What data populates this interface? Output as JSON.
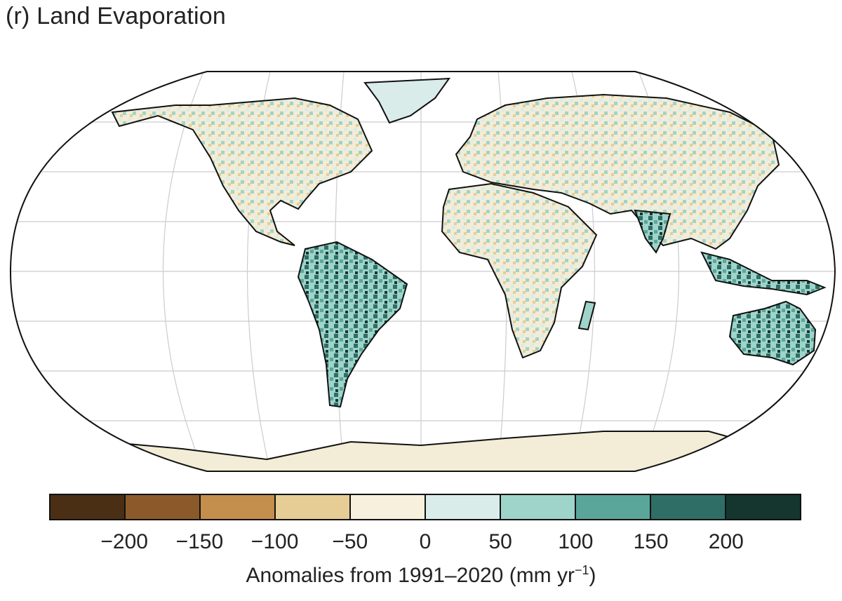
{
  "title": "(r) Land Evaporation",
  "map": {
    "projection": "Robinson",
    "ocean_color": "#ffffff",
    "coastline_color": "#111111",
    "graticule_color": "#cccccc"
  },
  "colorbar": {
    "colors": [
      "#4a2f15",
      "#8c5a2a",
      "#c48e4c",
      "#e6cd95",
      "#f6f0dc",
      "#d9ecea",
      "#9fd4ca",
      "#5aa69a",
      "#2f6e66",
      "#14362f"
    ],
    "ticks": [
      "−200",
      "−150",
      "−100",
      "−50",
      "0",
      "50",
      "100",
      "150",
      "200"
    ],
    "label_text": "Anomalies from 1991–2020 (mm yr",
    "label_exponent": "−1",
    "label_close": ")"
  }
}
